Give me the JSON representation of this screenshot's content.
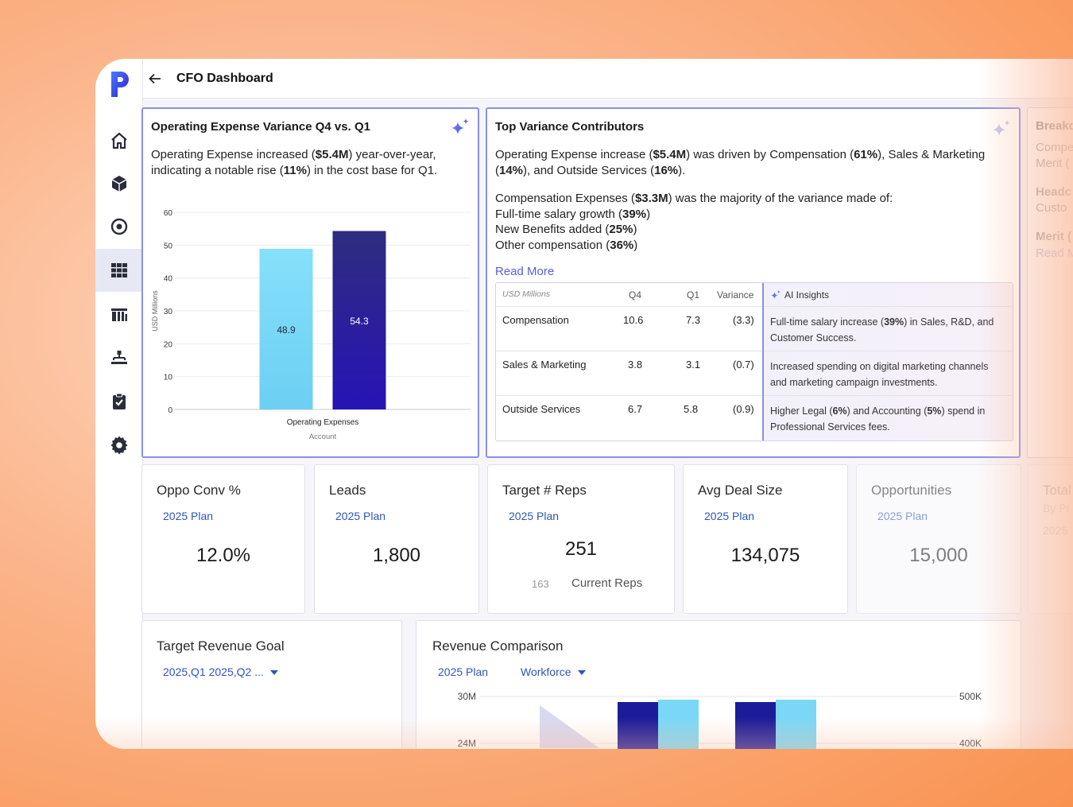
{
  "header": {
    "title": "CFO Dashboard"
  },
  "sidebar": {
    "items": [
      {
        "icon": "home-icon"
      },
      {
        "icon": "cube-icon"
      },
      {
        "icon": "target-icon"
      },
      {
        "icon": "grid-icon",
        "active": true
      },
      {
        "icon": "building-icon"
      },
      {
        "icon": "org-chart-icon"
      },
      {
        "icon": "clipboard-check-icon"
      },
      {
        "icon": "gear-icon"
      }
    ]
  },
  "variance_card": {
    "title": "Operating Expense Variance Q4 vs. Q1",
    "text_1": "Operating Expense increased (",
    "text_2": "$5.4M",
    "text_3": ") year-over-year,",
    "text_4": "indicating a notable rise (",
    "text_5": "11%",
    "text_6": ") in the cost base for Q1."
  },
  "chart_data": {
    "type": "bar",
    "categories": [
      "Operating Expenses"
    ],
    "series": [
      {
        "values": [
          48.9
        ],
        "color": "#7ad8f6"
      },
      {
        "values": [
          54.3
        ],
        "color": "#2a1fa6"
      }
    ],
    "ylabel": "USD Millions",
    "xlabel": "Account",
    "ylim": [
      0,
      60
    ],
    "yticks": [
      0,
      10,
      20,
      30,
      40,
      50,
      60
    ],
    "data_labels": [
      "48.9",
      "54.3"
    ],
    "grid": true
  },
  "contributors": {
    "title": "Top Variance Contributors",
    "p1": [
      {
        "t": "Operating Expense increase ("
      },
      {
        "t": "$5.4M",
        "b": true
      },
      {
        "t": ") was driven by Compensation ("
      },
      {
        "t": "61%",
        "b": true
      },
      {
        "t": "), Sales & Marketing"
      }
    ],
    "p1b": [
      {
        "t": "(",
        "b": false
      },
      {
        "t": "14%",
        "b": true
      },
      {
        "t": "), and Outside Services ("
      },
      {
        "t": "16%",
        "b": true
      },
      {
        "t": ")."
      }
    ],
    "p2": [
      {
        "t": "Compensation Expenses ("
      },
      {
        "t": "$3.3M",
        "b": true
      },
      {
        "t": ") was the majority of the variance made of:"
      }
    ],
    "p3": [
      {
        "t": "Full-time salary growth ("
      },
      {
        "t": "39%",
        "b": true
      },
      {
        "t": ")"
      }
    ],
    "p4": [
      {
        "t": "New Benefits added ("
      },
      {
        "t": "25%",
        "b": true
      },
      {
        "t": ")"
      }
    ],
    "p5": [
      {
        "t": "Other compensation ("
      },
      {
        "t": "36%",
        "b": true
      },
      {
        "t": ")"
      }
    ],
    "read_more": "Read More",
    "table": {
      "headers": {
        "unit": "USD Millions",
        "q4": "Q4",
        "q1": "Q1",
        "variance": "Variance",
        "insights": "AI Insights"
      },
      "rows": [
        {
          "name": "Compensation",
          "q4": "10.6",
          "q1": "7.3",
          "variance": "(3.3)",
          "insight": [
            {
              "t": "Full-time salary increase ("
            },
            {
              "t": "39%",
              "b": true
            },
            {
              "t": ") in Sales, R&D, and Customer Success."
            }
          ]
        },
        {
          "name": "Sales & Marketing",
          "q4": "3.8",
          "q1": "3.1",
          "variance": "(0.7)",
          "insight": [
            {
              "t": "Increased spending on digital marketing channels and marketing campaign investments."
            }
          ]
        },
        {
          "name": "Outside Services",
          "q4": "6.7",
          "q1": "5.8",
          "variance": "(0.9)",
          "insight": [
            {
              "t": "Higher Legal ("
            },
            {
              "t": "6%",
              "b": true
            },
            {
              "t": ") and Accounting ("
            },
            {
              "t": "5%",
              "b": true
            },
            {
              "t": ") spend in Professional Services fees."
            }
          ]
        }
      ]
    }
  },
  "breakdown_card": {
    "title": "Breakdo",
    "l1": "Compe",
    "l2": "Merit (",
    "h2": "Headc",
    "l3": "Custo",
    "h3": "Merit (",
    "read_more": "Read M"
  },
  "kpis": [
    {
      "title": "Oppo Conv %",
      "plan": "2025 Plan",
      "value": "12.0%"
    },
    {
      "title": "Leads",
      "plan": "2025 Plan",
      "value": "1,800"
    },
    {
      "title": "Target # Reps",
      "plan": "2025 Plan",
      "value": "251",
      "sub_value": "163",
      "sub_label": "Current Reps"
    },
    {
      "title": "Avg Deal Size",
      "plan": "2025 Plan",
      "value": "134,075"
    },
    {
      "title": "Opportunities",
      "plan": "2025 Plan",
      "value": "15,000"
    },
    {
      "title": "Total",
      "plan": "By Pr",
      "value": "2025"
    }
  ],
  "revenue_goal": {
    "title": "Target Revenue Goal",
    "filter": "2025,Q1 2025,Q2 ..."
  },
  "revenue_comparison": {
    "title": "Revenue Comparison",
    "filter_plan": "2025 Plan",
    "filter_workforce": "Workforce",
    "y_left": [
      "30M",
      "24M"
    ],
    "y_right": [
      "500K",
      "400K"
    ]
  }
}
